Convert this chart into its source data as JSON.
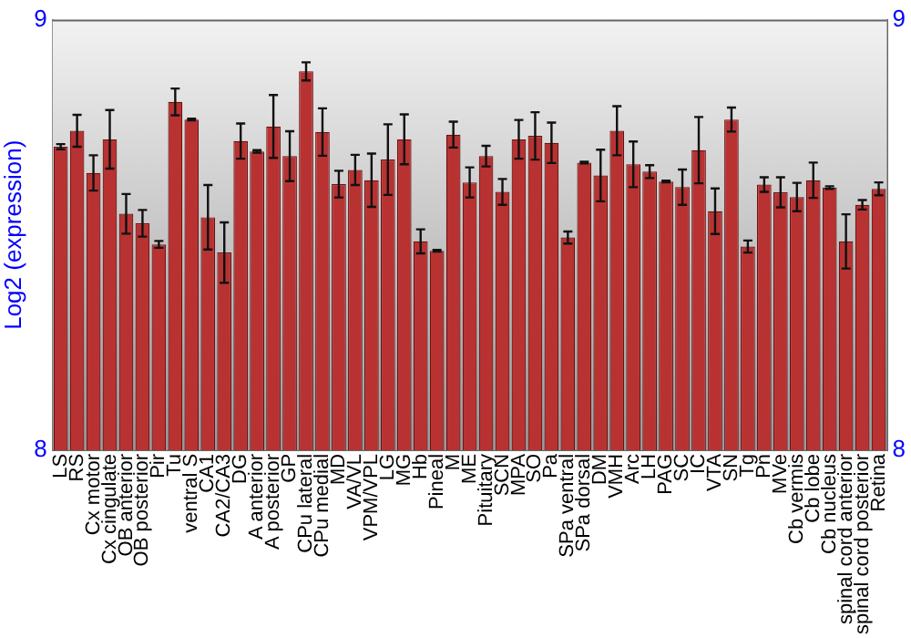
{
  "chart_data": {
    "type": "bar",
    "ylabel": "Log2 (expression)",
    "color": "#b83232",
    "categories": [
      "LS",
      "RS",
      "Cx motor",
      "Cx cingulate",
      "OB anterior",
      "OB posterior",
      "Pir",
      "Tu",
      "ventral S",
      "CA1",
      "CA2/CA3",
      "DG",
      "A anterior",
      "A posterior",
      "GP",
      "CPu lateral",
      "CPu medial",
      "MD",
      "VA/VL",
      "VPM/VPL",
      "LG",
      "MG",
      "Hb",
      "Pineal",
      "M",
      "ME",
      "Pituitary",
      "SCN",
      "MPA",
      "SO",
      "Pa",
      "SPa ventral",
      "SPa dorsal",
      "DM",
      "VMH",
      "Arc",
      "LH",
      "PAG",
      "SC",
      "IC",
      "VTA",
      "SN",
      "Tg",
      "Pn",
      "MVe",
      "Cb vermis",
      "Cb lobe",
      "Cb nucleus",
      "spinal cord anterior",
      "spinal cord posterior",
      "Retina"
    ],
    "values": [
      8.705,
      8.742,
      8.644,
      8.722,
      8.549,
      8.527,
      8.478,
      8.809,
      8.768,
      8.541,
      8.459,
      8.718,
      8.694,
      8.752,
      8.683,
      8.88,
      8.739,
      8.618,
      8.651,
      8.627,
      8.675,
      8.722,
      8.485,
      8.463,
      8.733,
      8.622,
      8.683,
      8.6,
      8.722,
      8.73,
      8.714,
      8.494,
      8.668,
      8.638,
      8.742,
      8.664,
      8.647,
      8.624,
      8.611,
      8.697,
      8.555,
      8.768,
      8.473,
      8.617,
      8.599,
      8.588,
      8.627,
      8.61,
      8.485,
      8.57,
      8.607
    ],
    "errors": [
      0.006,
      0.037,
      0.041,
      0.068,
      0.046,
      0.031,
      0.008,
      0.031,
      0.002,
      0.075,
      0.07,
      0.041,
      0.003,
      0.073,
      0.058,
      0.021,
      0.055,
      0.031,
      0.035,
      0.062,
      0.082,
      0.058,
      0.028,
      0.002,
      0.03,
      0.035,
      0.024,
      0.03,
      0.045,
      0.055,
      0.047,
      0.014,
      0.002,
      0.06,
      0.057,
      0.053,
      0.015,
      0.002,
      0.041,
      0.077,
      0.053,
      0.028,
      0.014,
      0.017,
      0.035,
      0.033,
      0.041,
      0.003,
      0.063,
      0.011,
      0.015
    ],
    "ylim": [
      8,
      9
    ],
    "yticks": [
      8,
      9
    ],
    "y2lim": [
      8,
      9
    ],
    "y2ticks": [
      8,
      9
    ],
    "grid": false,
    "legend": false
  }
}
